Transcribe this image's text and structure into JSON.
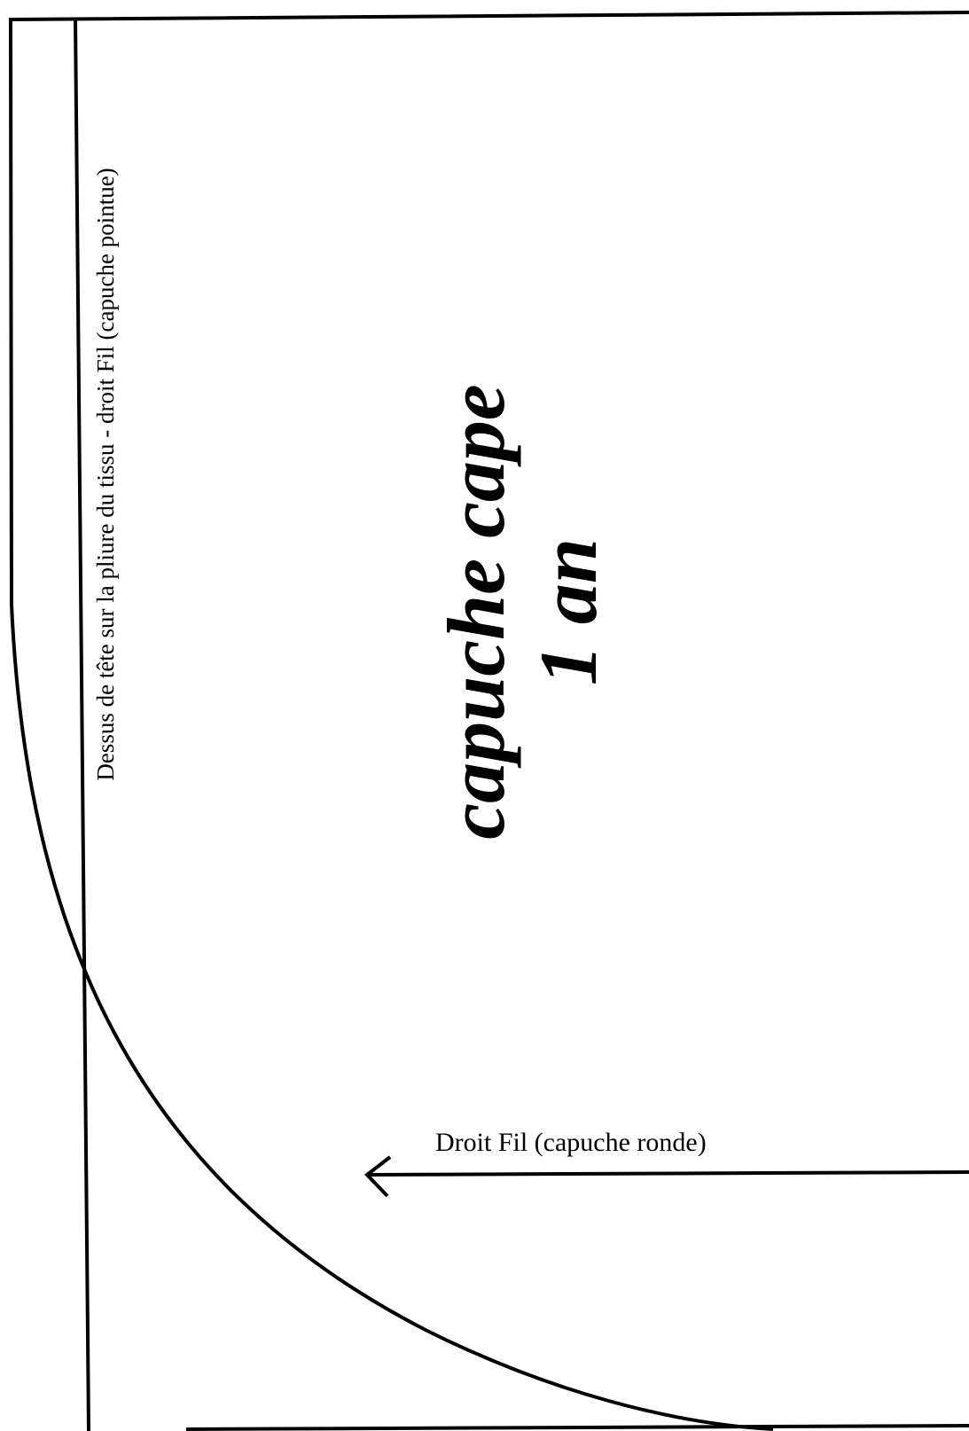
{
  "pattern": {
    "title_line1": "capuche cape",
    "title_line2": "1 an",
    "fold_label": "Dessus de tête sur la pliure du tissu - droit Fil (capuche pointue)",
    "grain_label": "Droit Fil (capuche ronde)"
  },
  "colors": {
    "ink": "#000000",
    "paper": "#ffffff"
  }
}
